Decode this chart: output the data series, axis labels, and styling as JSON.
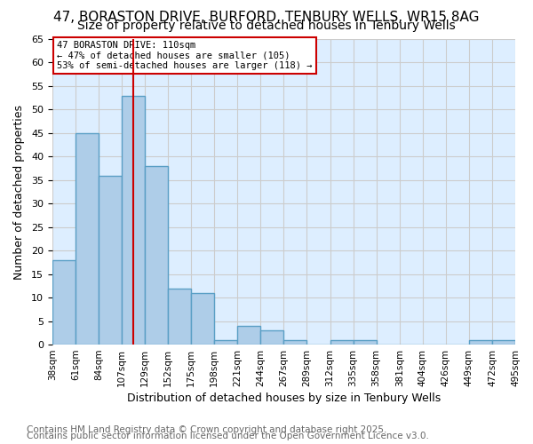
{
  "title1": "47, BORASTON DRIVE, BURFORD, TENBURY WELLS, WR15 8AG",
  "title2": "Size of property relative to detached houses in Tenbury Wells",
  "xlabel": "Distribution of detached houses by size in Tenbury Wells",
  "ylabel": "Number of detached properties",
  "bin_labels": [
    "38sqm",
    "61sqm",
    "84sqm",
    "107sqm",
    "129sqm",
    "152sqm",
    "175sqm",
    "198sqm",
    "221sqm",
    "244sqm",
    "267sqm",
    "289sqm",
    "312sqm",
    "335sqm",
    "358sqm",
    "381sqm",
    "404sqm",
    "426sqm",
    "449sqm",
    "472sqm",
    "495sqm"
  ],
  "bar_values": [
    18,
    45,
    36,
    53,
    38,
    12,
    11,
    1,
    4,
    3,
    1,
    0,
    1,
    1,
    0,
    0,
    0,
    0,
    1,
    1
  ],
  "bar_color": "#aecde8",
  "bar_edgecolor": "#5a9fc5",
  "bar_linewidth": 1.0,
  "vline_x": 3,
  "vline_color": "#cc0000",
  "vline_linewidth": 1.5,
  "annotation_text": "47 BORASTON DRIVE: 110sqm\n← 47% of detached houses are smaller (105)\n53% of semi-detached houses are larger (118) →",
  "annotation_box_edgecolor": "#cc0000",
  "annotation_box_facecolor": "#ffffff",
  "ylim": [
    0,
    65
  ],
  "yticks": [
    0,
    5,
    10,
    15,
    20,
    25,
    30,
    35,
    40,
    45,
    50,
    55,
    60,
    65
  ],
  "grid_color": "#cccccc",
  "bg_color": "#ddeeff",
  "footnote1": "Contains HM Land Registry data © Crown copyright and database right 2025.",
  "footnote2": "Contains public sector information licensed under the Open Government Licence v3.0.",
  "title_fontsize": 11,
  "subtitle_fontsize": 10,
  "footnote_fontsize": 7.5
}
